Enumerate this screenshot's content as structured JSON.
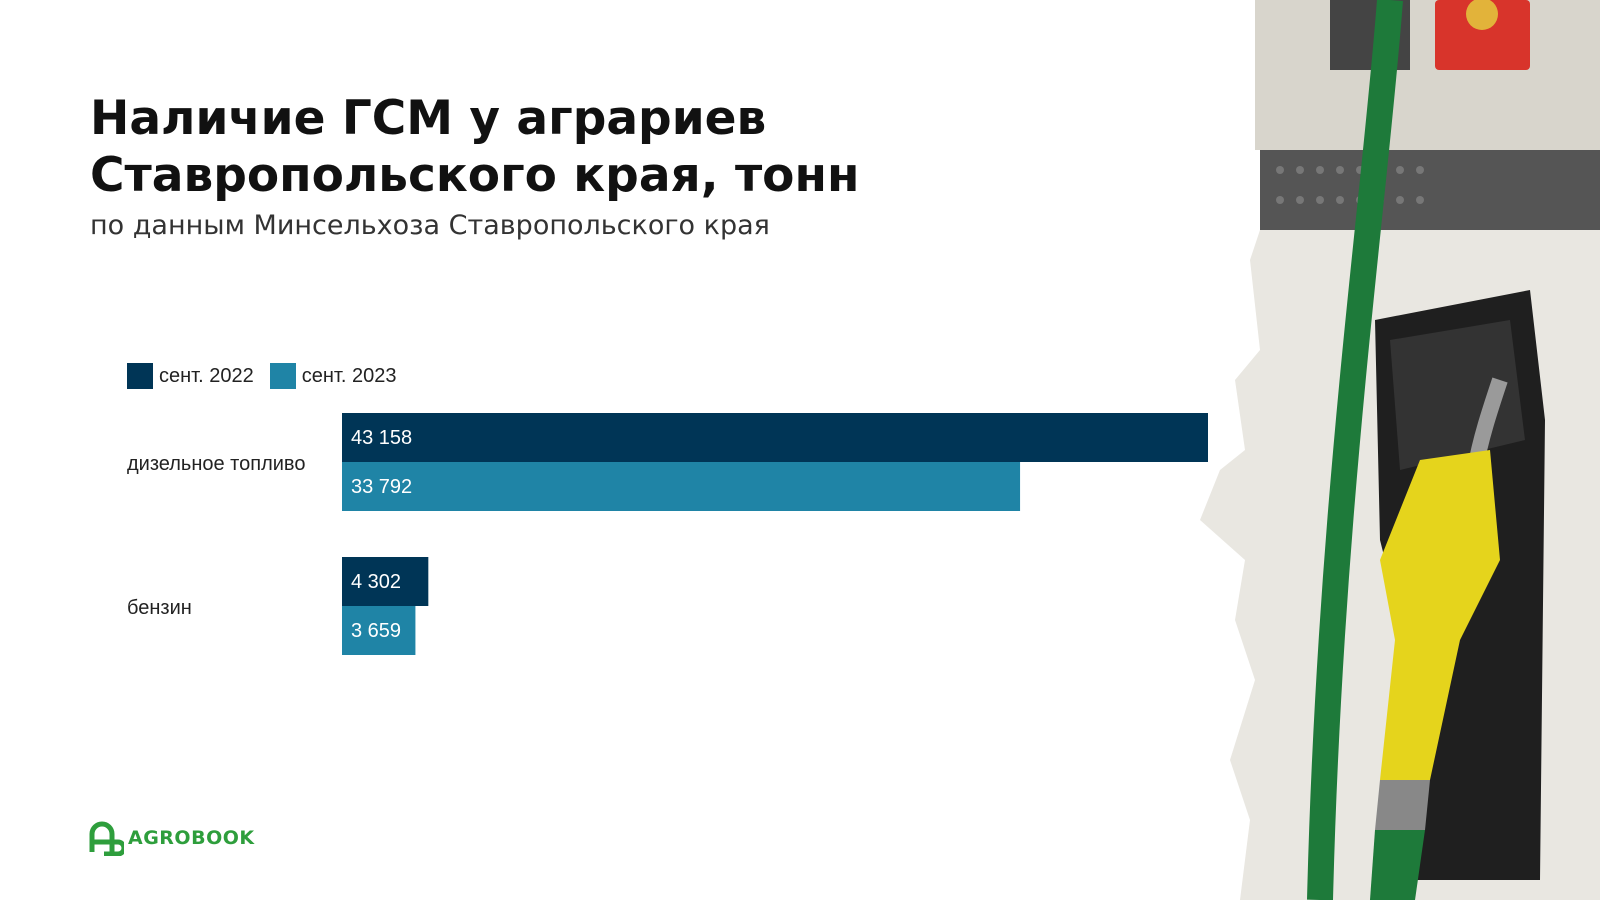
{
  "header": {
    "title": "Наличие ГСМ у аграриев Ставропольского края, тонн",
    "subtitle": "по данным Минсельхоза Ставропольского края"
  },
  "legend": [
    {
      "label": "сент. 2022",
      "color": "#003556"
    },
    {
      "label": "сент. 2023",
      "color": "#1f84a6"
    }
  ],
  "chart_data": {
    "type": "bar",
    "orientation": "horizontal",
    "categories": [
      "дизельное топливо",
      "бензин"
    ],
    "series": [
      {
        "name": "сент. 2022",
        "values": [
          43158,
          4302
        ],
        "labels": [
          "43 158",
          "4 302"
        ],
        "color": "#003556"
      },
      {
        "name": "сент. 2023",
        "values": [
          33792,
          3659
        ],
        "labels": [
          "33 792",
          "3 659"
        ],
        "color": "#1f84a6"
      }
    ],
    "xlim": [
      0,
      43158
    ],
    "legend_position": "top-left",
    "grid": false
  },
  "brand": {
    "logo_text": "AGROBOOK",
    "logo_icon": "agrobook-logo-icon",
    "logo_color": "#2e9e3c"
  },
  "photo": {
    "icon": "fuel-pump-nozzle-photo"
  }
}
